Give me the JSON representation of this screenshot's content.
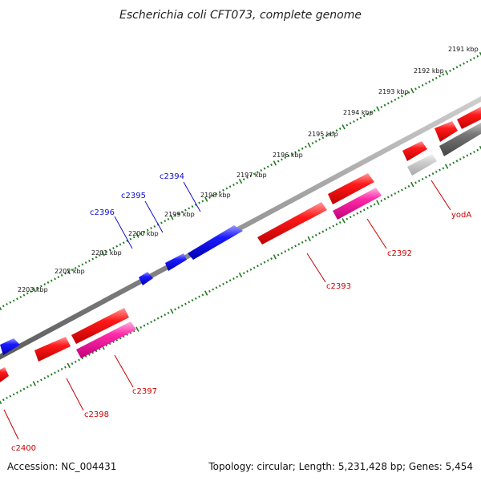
{
  "title": "Escherichia coli CFT073, complete genome",
  "footer": {
    "accession": "Accession: NC_004431",
    "summary": "Topology: circular; Length: 5,231,428 bp; Genes: 5,454"
  },
  "colors": {
    "backbone": "#8a8a8a",
    "ticks": "#1f7a1f",
    "forward_gene": "#ff1010",
    "reverse_gene": "#1010ee",
    "pseudo_gene": "#ff2aa8",
    "grey_gene": "#777777",
    "light_gene": "#c8c8c8",
    "reverse_label": "#1010cc",
    "forward_label": "#cc0000"
  },
  "kbp_labels": [
    {
      "text": "2191 kbp"
    },
    {
      "text": "2192 kbp"
    },
    {
      "text": "2193 kbp"
    },
    {
      "text": "2194 kbp"
    },
    {
      "text": "2195 kbp"
    },
    {
      "text": "2196 kbp"
    },
    {
      "text": "2197 kbp"
    },
    {
      "text": "2198 kbp"
    },
    {
      "text": "2199 kbp"
    },
    {
      "text": "2200 kbp"
    },
    {
      "text": "2201 kbp"
    },
    {
      "text": "2202 kbp"
    },
    {
      "text": "2203 kbp"
    }
  ],
  "gene_labels": [
    {
      "text": "c2394"
    },
    {
      "text": "c2395"
    },
    {
      "text": "c2396"
    },
    {
      "text": "yodA"
    },
    {
      "text": "c2392"
    },
    {
      "text": "c2393"
    },
    {
      "text": "c2397"
    },
    {
      "text": "c2398"
    },
    {
      "text": "c2400"
    }
  ]
}
